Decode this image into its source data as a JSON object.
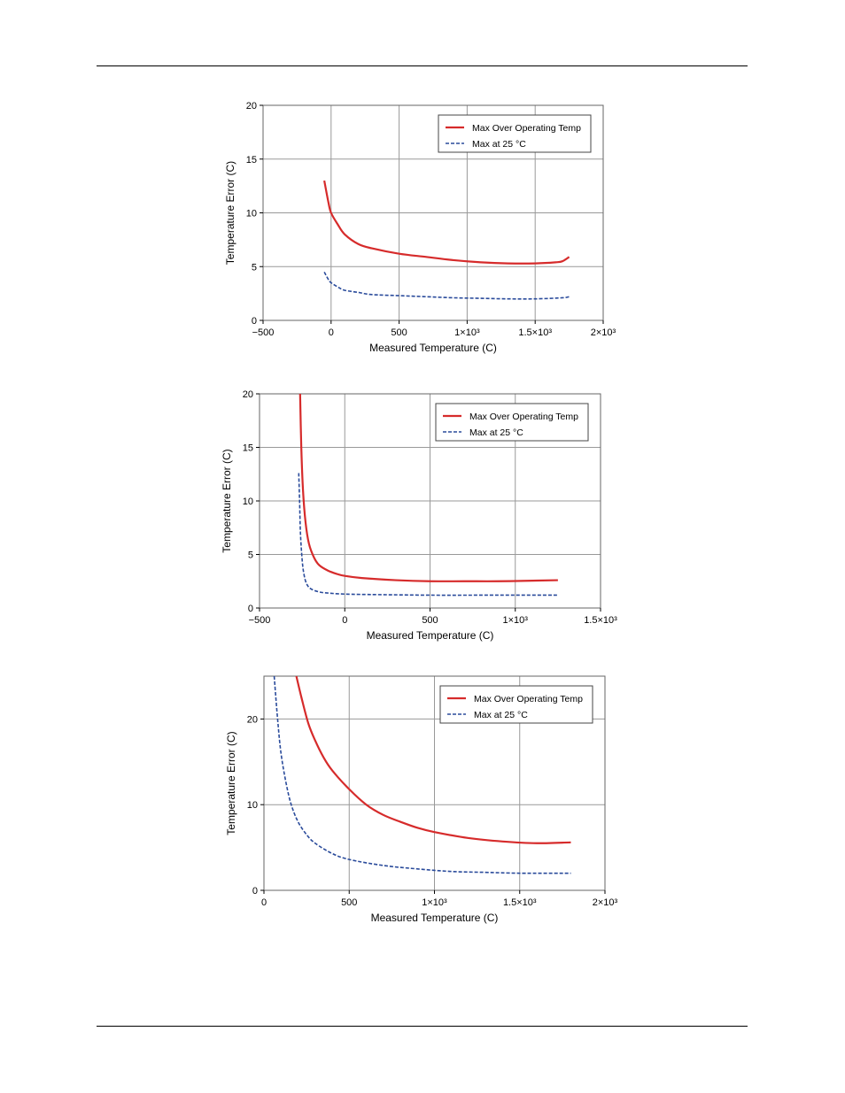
{
  "chart_data": [
    {
      "type": "line",
      "xlabel": "Measured Temperature (C)",
      "ylabel": "Temperature Error (C)",
      "xlim": [
        -500,
        2000
      ],
      "ylim": [
        0,
        20
      ],
      "x_ticks": [
        -500,
        0,
        500,
        1000,
        1500,
        2000
      ],
      "x_tick_labels": [
        "−500",
        "0",
        "500",
        "1×10³",
        "1.5×10³",
        "2×10³"
      ],
      "y_ticks": [
        0,
        5,
        10,
        15,
        20
      ],
      "y_tick_labels": [
        "0",
        "5",
        "10",
        "15",
        "20"
      ],
      "grid": true,
      "legend_position": "top-right",
      "series": [
        {
          "name": "Max Over Operating Temp",
          "color": "#d62b2b",
          "style": "solid",
          "x": [
            -50,
            -20,
            0,
            50,
            100,
            200,
            300,
            500,
            700,
            900,
            1100,
            1300,
            1500,
            1650,
            1700,
            1750
          ],
          "y": [
            13.0,
            11.0,
            10.0,
            8.9,
            8.0,
            7.1,
            6.7,
            6.2,
            5.9,
            5.6,
            5.4,
            5.3,
            5.3,
            5.4,
            5.5,
            5.9
          ]
        },
        {
          "name": "Max at 25 °C",
          "color": "#2a4b9b",
          "style": "dashed",
          "x": [
            -50,
            -20,
            0,
            50,
            100,
            200,
            300,
            500,
            700,
            900,
            1100,
            1300,
            1500,
            1700,
            1750
          ],
          "y": [
            4.5,
            3.8,
            3.5,
            3.1,
            2.8,
            2.6,
            2.4,
            2.3,
            2.2,
            2.1,
            2.05,
            2.0,
            2.0,
            2.1,
            2.2
          ]
        }
      ]
    },
    {
      "type": "line",
      "xlabel": "Measured Temperature (C)",
      "ylabel": "Temperature Error (C)",
      "xlim": [
        -500,
        1500
      ],
      "ylim": [
        0,
        20
      ],
      "x_ticks": [
        -500,
        0,
        500,
        1000,
        1500
      ],
      "x_tick_labels": [
        "−500",
        "0",
        "500",
        "1×10³",
        "1.5×10³"
      ],
      "y_ticks": [
        0,
        5,
        10,
        15,
        20
      ],
      "y_tick_labels": [
        "0",
        "5",
        "10",
        "15",
        "20"
      ],
      "grid": true,
      "legend_position": "top-right",
      "series": [
        {
          "name": "Max Over Operating Temp",
          "color": "#d62b2b",
          "style": "solid",
          "x": [
            -262,
            -255,
            -245,
            -230,
            -210,
            -180,
            -150,
            -100,
            -50,
            0,
            100,
            300,
            500,
            700,
            900,
            1100,
            1250
          ],
          "y": [
            20.0,
            15.0,
            11.0,
            8.0,
            6.0,
            4.7,
            4.0,
            3.5,
            3.2,
            3.0,
            2.8,
            2.6,
            2.5,
            2.5,
            2.5,
            2.55,
            2.6
          ]
        },
        {
          "name": "Max at 25 °C",
          "color": "#2a4b9b",
          "style": "dashed",
          "x": [
            -270,
            -265,
            -260,
            -250,
            -240,
            -225,
            -200,
            -150,
            -100,
            0,
            200,
            500,
            800,
            1000,
            1250
          ],
          "y": [
            12.6,
            10.0,
            7.0,
            4.5,
            3.2,
            2.3,
            1.8,
            1.5,
            1.4,
            1.3,
            1.25,
            1.2,
            1.2,
            1.2,
            1.2
          ]
        }
      ]
    },
    {
      "type": "line",
      "xlabel": "Measured Temperature (C)",
      "ylabel": "Temperature Error (C)",
      "xlim": [
        0,
        2000
      ],
      "ylim": [
        0,
        25
      ],
      "x_ticks": [
        0,
        500,
        1000,
        1500,
        2000
      ],
      "x_tick_labels": [
        "0",
        "500",
        "1×10³",
        "1.5×10³",
        "2×10³"
      ],
      "y_ticks": [
        0,
        10,
        20
      ],
      "y_tick_labels": [
        "0",
        "10",
        "20"
      ],
      "grid": true,
      "legend_position": "top-right",
      "series": [
        {
          "name": "Max Over Operating Temp",
          "color": "#d62b2b",
          "style": "solid",
          "x": [
            190,
            220,
            260,
            300,
            350,
            400,
            500,
            600,
            700,
            800,
            900,
            1000,
            1200,
            1400,
            1600,
            1800
          ],
          "y": [
            25.0,
            22.5,
            19.5,
            17.5,
            15.5,
            14.0,
            11.8,
            10.0,
            8.8,
            8.0,
            7.3,
            6.8,
            6.1,
            5.7,
            5.5,
            5.6
          ]
        },
        {
          "name": "Max at 25 °C",
          "color": "#2a4b9b",
          "style": "dashed",
          "x": [
            60,
            80,
            100,
            130,
            160,
            200,
            250,
            300,
            400,
            500,
            700,
            900,
            1100,
            1300,
            1500,
            1800
          ],
          "y": [
            25.0,
            20.0,
            16.0,
            12.5,
            10.0,
            8.0,
            6.5,
            5.5,
            4.3,
            3.6,
            2.9,
            2.5,
            2.2,
            2.1,
            2.0,
            2.0
          ]
        }
      ]
    }
  ]
}
